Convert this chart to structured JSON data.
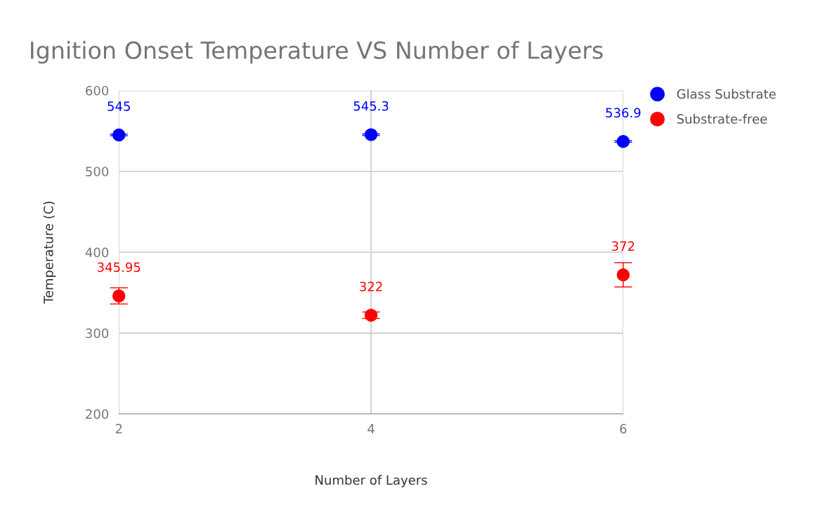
{
  "chart_data": {
    "type": "scatter",
    "title": "Ignition Onset Temperature VS Number of Layers",
    "xlabel": "Number of Layers",
    "ylabel": "Temperature (C)",
    "x": [
      2,
      4,
      6
    ],
    "series": [
      {
        "name": "Glass Substrate",
        "color": "#0000ff",
        "values": [
          545,
          545.3,
          536.9
        ],
        "errors": [
          1,
          1,
          1
        ]
      },
      {
        "name": "Substrate-free",
        "color": "#ff0000",
        "values": [
          345.95,
          322,
          372
        ],
        "errors": [
          10,
          4,
          15
        ]
      }
    ],
    "xlim": [
      2,
      6
    ],
    "xticks": [
      2,
      4,
      6
    ],
    "ylim": [
      200,
      600
    ],
    "yticks": [
      200,
      300,
      400,
      500,
      600
    ],
    "grid": true,
    "legend": "top right",
    "marker": "circle",
    "data_labels": true
  }
}
